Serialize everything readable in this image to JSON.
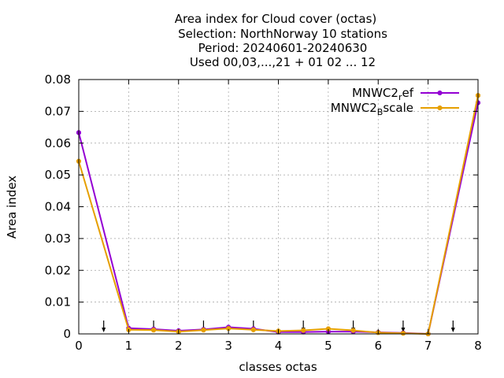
{
  "chart_data": {
    "type": "line",
    "title_lines": [
      "Area index  for Cloud cover (octas)",
      "Selection: NorthNorway      10 stations",
      "Period: 20240601-20240630",
      "Used 00,03,...,21 + 01 02 ... 12"
    ],
    "xlabel": "classes octas",
    "ylabel": "Area index",
    "xlim": [
      0,
      8
    ],
    "ylim": [
      0,
      0.08
    ],
    "x_ticks": [
      0,
      1,
      2,
      3,
      4,
      5,
      6,
      7,
      8
    ],
    "y_ticks": [
      0,
      0.01,
      0.02,
      0.03,
      0.04,
      0.05,
      0.06,
      0.07,
      0.08
    ],
    "y_tick_labels": [
      "0",
      "0.01",
      "0.02",
      "0.03",
      "0.04",
      "0.05",
      "0.06",
      "0.07",
      "0.08"
    ],
    "grid": true,
    "legend_position": "top-right",
    "arrow_markers_x": [
      0.5,
      1.5,
      2.5,
      3.5,
      4.5,
      5.5,
      6.5,
      7.5
    ],
    "x": [
      0,
      1,
      1.5,
      2,
      2.5,
      3,
      3.5,
      4,
      4.5,
      5,
      5.5,
      6,
      6.5,
      7,
      8
    ],
    "series": [
      {
        "name_main": "MNWC2",
        "name_sub": "r",
        "name_rest": "ef",
        "color": "#9400d3",
        "values": [
          0.0633,
          0.0018,
          0.0015,
          0.001,
          0.0014,
          0.0021,
          0.0016,
          0.0006,
          0.0006,
          0.0007,
          0.0007,
          0.0005,
          0.0003,
          0.0,
          0.0727
        ]
      },
      {
        "name_main": "MNWC2",
        "name_sub": "B",
        "name_rest": "scale",
        "color": "#e69f00",
        "values": [
          0.0543,
          0.0013,
          0.0012,
          0.0007,
          0.0012,
          0.0017,
          0.0013,
          0.0009,
          0.0011,
          0.0016,
          0.0011,
          0.0004,
          0.0002,
          0.0,
          0.075
        ]
      }
    ]
  }
}
